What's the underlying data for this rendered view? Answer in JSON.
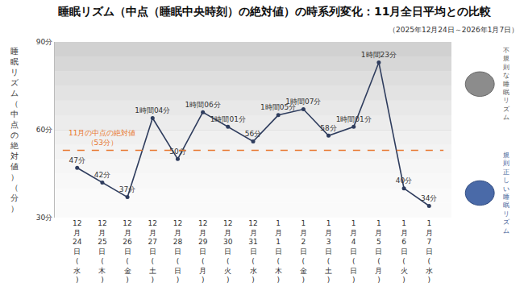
{
  "chart_data": {
    "type": "line",
    "title": "睡眠リズム（中点（睡眠中央時刻）の絶対値）の時系列変化：11月全日平均との比較",
    "subtitle": "（2025年12月24日～2026年1月7日）",
    "y_label": "睡眠リズム（中点の絶対値）（分）",
    "categories": [
      "12月24日(水)",
      "12月25日(木)",
      "12月26日(金)",
      "12月27日(土)",
      "12月28日(日)",
      "12月29日(月)",
      "12月30日(火)",
      "12月31日(水)",
      "1月1日(木)",
      "1月2日(金)",
      "1月3日(土)",
      "1月4日(日)",
      "1月5日(月)",
      "1月6日(火)",
      "1月7日(水)"
    ],
    "values": [
      47,
      42,
      37,
      64,
      50,
      66,
      61,
      56,
      65,
      67,
      58,
      61,
      83,
      40,
      34
    ],
    "value_labels": [
      "47分",
      "42分",
      "37分",
      "1時間04分",
      "50分",
      "1時間06分",
      "1時間01分",
      "56分",
      "1時間05分",
      "1時間07分",
      "58分",
      "1時間01分",
      "1時間23分",
      "40分",
      "34分"
    ],
    "data_labels": true,
    "color": "#2f3d5e",
    "marker": "circle",
    "line_style": "solid",
    "ylim": [
      30,
      90
    ],
    "yticks": [
      {
        "value": 30,
        "label": "30分"
      },
      {
        "value": 60,
        "label": "60分"
      },
      {
        "value": 90,
        "label": "90分"
      }
    ],
    "grid": true,
    "reference_line": {
      "value": 53,
      "label": "11月の中点の絶対値",
      "value_label": "（53分）",
      "color": "#e8772e",
      "line_style": "dash"
    },
    "annotations": [
      {
        "text": "不規則な睡眠リズム",
        "color": "#555555"
      },
      {
        "text": "規則正しい睡眠リズム",
        "color": "#3d5a96"
      }
    ]
  }
}
